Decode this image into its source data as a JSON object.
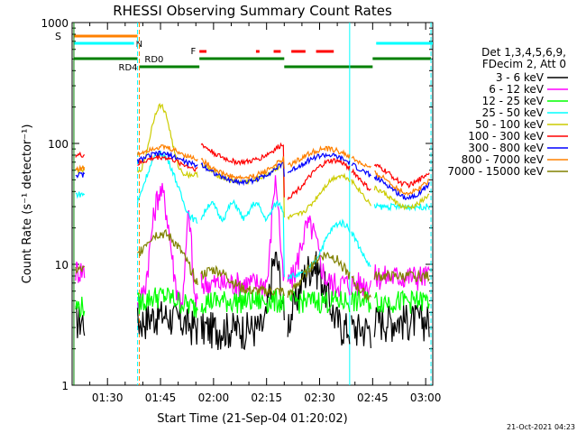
{
  "chart_data": {
    "type": "line",
    "title": "RHESSI Observing Summary Count Rates",
    "xlabel": "Start Time (21-Sep-04 01:20:02)",
    "ylabel": "Count Rate (s⁻¹ detector⁻¹)",
    "y_scale": "log",
    "ylim": [
      1,
      1000
    ],
    "x_range_minutes_from_0120": [
      0,
      102
    ],
    "y_ticks": [
      "1",
      "10",
      "100",
      "1000"
    ],
    "x_ticks": [
      {
        "label": "01:30",
        "t": 10
      },
      {
        "label": "01:45",
        "t": 25
      },
      {
        "label": "02:00",
        "t": 40
      },
      {
        "label": "02:15",
        "t": 55
      },
      {
        "label": "02:30",
        "t": 70
      },
      {
        "label": "02:45",
        "t": 85
      },
      {
        "label": "03:00",
        "t": 100
      }
    ],
    "legend_header": [
      "Det 1,3,4,5,6,9,",
      "FDecim 2, Att 0"
    ],
    "legend_position": "right",
    "series": [
      {
        "name": "3 - 6 keV",
        "color": "#000000"
      },
      {
        "name": "6 - 12 keV",
        "color": "#ff00ff"
      },
      {
        "name": "12 - 25 keV",
        "color": "#00ff00"
      },
      {
        "name": "25 - 50 keV",
        "color": "#00ffff"
      },
      {
        "name": "50 - 100 keV",
        "color": "#cccc00"
      },
      {
        "name": "100 - 300 keV",
        "color": "#ff0000"
      },
      {
        "name": "300 - 800 keV",
        "color": "#0000ff"
      },
      {
        "name": "800 - 7000 keV",
        "color": "#ff8000"
      },
      {
        "name": "7000 - 15000 keV",
        "color": "#808000"
      }
    ],
    "flag_labels": {
      "saa": "S",
      "night": "N",
      "flare": "F",
      "rd0": "RD0",
      "rd4": "RD4"
    },
    "timestamp": "21-Oct-2021 04:23"
  }
}
